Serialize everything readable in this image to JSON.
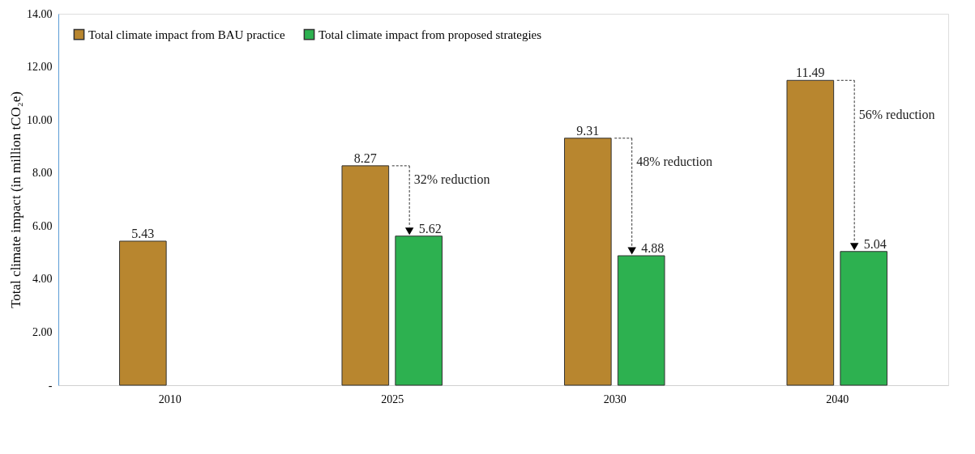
{
  "chart_data": {
    "type": "bar",
    "ylabel": "Total climate impact (in million tCO₂e)",
    "categories": [
      "2010",
      "2025",
      "2030",
      "2040"
    ],
    "series": [
      {
        "name": "Total climate impact from BAU practice",
        "color": "#b8862f",
        "values": [
          5.43,
          8.27,
          9.31,
          11.49
        ]
      },
      {
        "name": "Total climate impact from proposed strategies",
        "color": "#2db150",
        "values": [
          null,
          5.62,
          4.88,
          5.04
        ]
      }
    ],
    "ylim": [
      0,
      14
    ],
    "yticks": [
      {
        "value": 0,
        "label": "-"
      },
      {
        "value": 2,
        "label": "2.00"
      },
      {
        "value": 4,
        "label": "4.00"
      },
      {
        "value": 6,
        "label": "6.00"
      },
      {
        "value": 8,
        "label": "8.00"
      },
      {
        "value": 10,
        "label": "10.00"
      },
      {
        "value": 12,
        "label": "12.00"
      },
      {
        "value": 14,
        "label": "14.00"
      }
    ],
    "data_labels": true,
    "legend": "top left",
    "grid": false,
    "annotations": [
      {
        "text": "32% reduction",
        "x": "2025",
        "y": 8.27
      },
      {
        "text": "48% reduction",
        "x": "2030",
        "y": 9.31
      },
      {
        "text": "56% reduction",
        "x": "2040",
        "y": 11.49
      }
    ]
  }
}
